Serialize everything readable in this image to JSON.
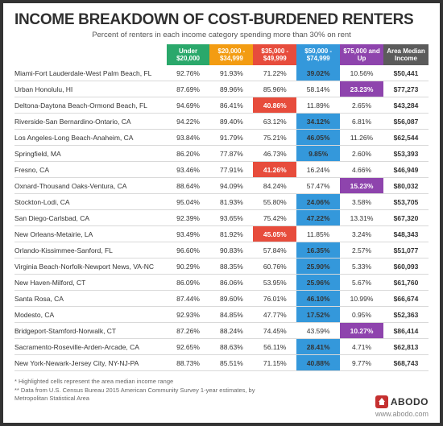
{
  "title": "INCOME BREAKDOWN OF COST-BURDENED RENTERS",
  "subtitle": "Percent of renters in each income category spending more than 30% on rent",
  "table": {
    "type": "table",
    "header_bg": [
      "#2aa86b",
      "#f39c12",
      "#e74c3c",
      "#3498db",
      "#8e44ad",
      "#5b5b5b"
    ],
    "highlight_bg": {
      "1": "#f39c12",
      "2": "#e74c3c",
      "3": "#3498db",
      "4": "#8e44ad"
    },
    "border_color": "#d9d9d9",
    "columns": [
      "",
      "Under $20,000",
      "$20,000 - $34,999",
      "$35,000 - $49,999",
      "$50,000 - $74,999",
      "$75,000 and Up",
      "Area Median Income"
    ],
    "rows": [
      {
        "metro": "Miami-Fort Lauderdale-West Palm Beach, FL",
        "vals": [
          "92.76%",
          "91.93%",
          "71.22%",
          "39.02%",
          "10.56%"
        ],
        "ami": "$50,441",
        "hl": 3
      },
      {
        "metro": "Urban Honolulu, HI",
        "vals": [
          "87.69%",
          "89.96%",
          "85.96%",
          "58.14%",
          "23.23%"
        ],
        "ami": "$77,273",
        "hl": 4
      },
      {
        "metro": "Deltona-Daytona Beach-Ormond Beach, FL",
        "vals": [
          "94.69%",
          "86.41%",
          "40.86%",
          "11.89%",
          "2.65%"
        ],
        "ami": "$43,284",
        "hl": 2
      },
      {
        "metro": "Riverside-San Bernardino-Ontario, CA",
        "vals": [
          "94.22%",
          "89.40%",
          "63.12%",
          "34.12%",
          "6.81%"
        ],
        "ami": "$56,087",
        "hl": 3
      },
      {
        "metro": "Los Angeles-Long Beach-Anaheim, CA",
        "vals": [
          "93.84%",
          "91.79%",
          "75.21%",
          "46.05%",
          "11.26%"
        ],
        "ami": "$62,544",
        "hl": 3
      },
      {
        "metro": "Springfield, MA",
        "vals": [
          "86.20%",
          "77.87%",
          "46.73%",
          "9.85%",
          "2.60%"
        ],
        "ami": "$53,393",
        "hl": 3
      },
      {
        "metro": "Fresno, CA",
        "vals": [
          "93.46%",
          "77.91%",
          "41.26%",
          "16.24%",
          "4.66%"
        ],
        "ami": "$46,949",
        "hl": 2
      },
      {
        "metro": "Oxnard-Thousand Oaks-Ventura, CA",
        "vals": [
          "88.64%",
          "94.09%",
          "84.24%",
          "57.47%",
          "15.23%"
        ],
        "ami": "$80,032",
        "hl": 4
      },
      {
        "metro": "Stockton-Lodi, CA",
        "vals": [
          "95.04%",
          "81.93%",
          "55.80%",
          "24.06%",
          "3.58%"
        ],
        "ami": "$53,705",
        "hl": 3
      },
      {
        "metro": "San Diego-Carlsbad, CA",
        "vals": [
          "92.39%",
          "93.65%",
          "75.42%",
          "47.22%",
          "13.31%"
        ],
        "ami": "$67,320",
        "hl": 3
      },
      {
        "metro": "New Orleans-Metairie, LA",
        "vals": [
          "93.49%",
          "81.92%",
          "45.05%",
          "11.85%",
          "3.24%"
        ],
        "ami": "$48,343",
        "hl": 2
      },
      {
        "metro": "Orlando-Kissimmee-Sanford, FL",
        "vals": [
          "96.60%",
          "90.83%",
          "57.84%",
          "16.35%",
          "2.57%"
        ],
        "ami": "$51,077",
        "hl": 3
      },
      {
        "metro": "Virginia Beach-Norfolk-Newport News, VA-NC",
        "vals": [
          "90.29%",
          "88.35%",
          "60.76%",
          "25.90%",
          "5.33%"
        ],
        "ami": "$60,093",
        "hl": 3
      },
      {
        "metro": "New Haven-Milford, CT",
        "vals": [
          "86.09%",
          "86.06%",
          "53.95%",
          "25.96%",
          "5.67%"
        ],
        "ami": "$61,760",
        "hl": 3
      },
      {
        "metro": "Santa Rosa, CA",
        "vals": [
          "87.44%",
          "89.60%",
          "76.01%",
          "46.10%",
          "10.99%"
        ],
        "ami": "$66,674",
        "hl": 3
      },
      {
        "metro": "Modesto, CA",
        "vals": [
          "92.93%",
          "84.85%",
          "47.77%",
          "17.52%",
          "0.95%"
        ],
        "ami": "$52,363",
        "hl": 3
      },
      {
        "metro": "Bridgeport-Stamford-Norwalk, CT",
        "vals": [
          "87.26%",
          "88.24%",
          "74.45%",
          "43.59%",
          "10.27%"
        ],
        "ami": "$86,414",
        "hl": 4
      },
      {
        "metro": "Sacramento-Roseville-Arden-Arcade, CA",
        "vals": [
          "92.65%",
          "88.63%",
          "56.11%",
          "28.41%",
          "4.71%"
        ],
        "ami": "$62,813",
        "hl": 3
      },
      {
        "metro": "New York-Newark-Jersey City, NY-NJ-PA",
        "vals": [
          "88.73%",
          "85.51%",
          "71.15%",
          "40.88%",
          "9.77%"
        ],
        "ami": "$68,743",
        "hl": 3
      }
    ]
  },
  "footnote1": "*   Highlighted cells represent the area median income range",
  "footnote2": "** Data from U.S. Census Bureau 2015 American Community Survey 1-year estimates, by Metropolitan Statistical Area",
  "logo_text": "ABODO",
  "site": "www.abodo.com"
}
